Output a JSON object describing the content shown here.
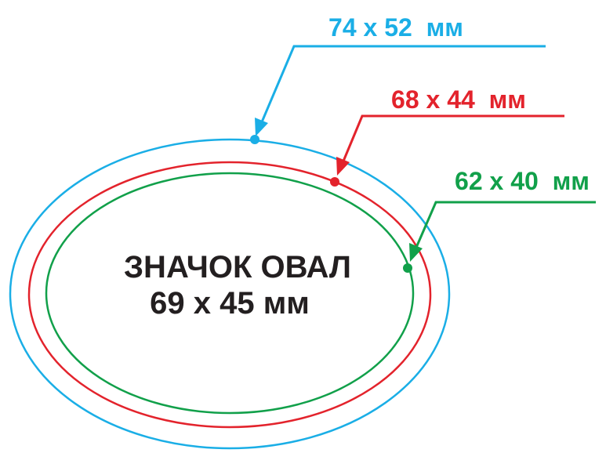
{
  "title": "ЗНАЧОК ОВАЛ",
  "size": "69 x 45 мм",
  "labels": [
    {
      "text": "74 x 52  мм",
      "color": "#1aaee6"
    },
    {
      "text": "68 x 44  мм",
      "color": "#e3232c"
    },
    {
      "text": "62 x 40  мм",
      "color": "#11a04a"
    }
  ]
}
